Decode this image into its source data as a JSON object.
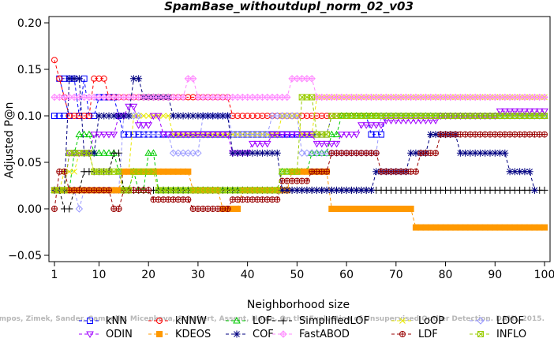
{
  "chart_data": {
    "type": "line",
    "title": "SpamBase_withoutdupl_norm_02_v03",
    "xlabel": "Neighborhood size",
    "ylabel": "Adjusted P@n",
    "xlim": [
      1,
      100
    ],
    "ylim": [
      -0.05,
      0.2
    ],
    "xticks": [
      "1",
      "10",
      "20",
      "30",
      "40",
      "50",
      "60",
      "70",
      "80",
      "90",
      "100"
    ],
    "yticks": [
      "−0.05",
      "0.00",
      "0.05",
      "0.10",
      "0.15",
      "0.20"
    ],
    "grid": false,
    "legend_position": "bottom",
    "credit": "Campos, Zimek, Sander, Campello, Micenkova, Schubert, Assent, Houle. On the Evaluation of Unsupervised Outlier Detection. DAMI, 2015.",
    "series": [
      {
        "name": "kNN",
        "color": "#0000ff",
        "marker": "square",
        "segments": [
          [
            1,
            4,
            0.1
          ],
          [
            2,
            5,
            0.14
          ],
          [
            6,
            6,
            0.1
          ],
          [
            7,
            7,
            0.14
          ],
          [
            8,
            9,
            0.1
          ],
          [
            10,
            13,
            0.12
          ],
          [
            14,
            14,
            0.1
          ],
          [
            15,
            36,
            0.08
          ],
          [
            37,
            56,
            0.08
          ],
          [
            57,
            64,
            0.1
          ],
          [
            65,
            67,
            0.08
          ],
          [
            68,
            100,
            0.1
          ]
        ]
      },
      {
        "name": "kNNW",
        "color": "#ff0000",
        "marker": "circle",
        "segments": [
          [
            1,
            1,
            0.16
          ],
          [
            2,
            2,
            0.14
          ],
          [
            3,
            3,
            0.12
          ],
          [
            4,
            8,
            0.1
          ],
          [
            9,
            11,
            0.14
          ],
          [
            12,
            36,
            0.12
          ],
          [
            37,
            100,
            0.1
          ]
        ]
      },
      {
        "name": "LOF",
        "color": "#00cc00",
        "marker": "triangle-up",
        "segments": [
          [
            1,
            4,
            0.02
          ],
          [
            5,
            5,
            0.06
          ],
          [
            6,
            8,
            0.08
          ],
          [
            9,
            13,
            0.06
          ],
          [
            14,
            14,
            0.04
          ],
          [
            15,
            16,
            0.02
          ],
          [
            17,
            17,
            0.04
          ],
          [
            18,
            19,
            0.02
          ],
          [
            20,
            21,
            0.06
          ],
          [
            22,
            46,
            0.02
          ],
          [
            47,
            52,
            0.04
          ],
          [
            53,
            56,
            0.06
          ],
          [
            57,
            58,
            0.08
          ],
          [
            59,
            100,
            0.1
          ]
        ]
      },
      {
        "name": "SimplifiedLOF",
        "color": "#000000",
        "marker": "plus",
        "segments": [
          [
            1,
            2,
            0.02
          ],
          [
            3,
            4,
            0.0
          ],
          [
            5,
            6,
            0.02
          ],
          [
            7,
            12,
            0.04
          ],
          [
            13,
            14,
            0.06
          ],
          [
            15,
            18,
            0.02
          ],
          [
            19,
            46,
            0.02
          ],
          [
            47,
            100,
            0.02
          ]
        ]
      },
      {
        "name": "LoOP",
        "color": "#e8e800",
        "marker": "x",
        "segments": [
          [
            1,
            2,
            0.02
          ],
          [
            3,
            5,
            0.04
          ],
          [
            6,
            8,
            0.06
          ],
          [
            9,
            16,
            0.04
          ],
          [
            17,
            24,
            0.1
          ],
          [
            25,
            46,
            0.08
          ],
          [
            47,
            50,
            0.1
          ],
          [
            51,
            53,
            0.08
          ],
          [
            54,
            100,
            0.12
          ]
        ]
      },
      {
        "name": "LDOF",
        "color": "#9999ff",
        "marker": "diamond",
        "segments": [
          [
            1,
            5,
            0.02
          ],
          [
            6,
            6,
            0.0
          ],
          [
            7,
            14,
            0.02
          ],
          [
            15,
            18,
            0.1
          ],
          [
            19,
            24,
            0.08
          ],
          [
            25,
            30,
            0.06
          ],
          [
            31,
            36,
            0.1
          ],
          [
            37,
            44,
            0.08
          ],
          [
            45,
            50,
            0.1
          ],
          [
            51,
            54,
            0.06
          ],
          [
            55,
            66,
            0.06
          ],
          [
            67,
            100,
            0.1
          ]
        ]
      },
      {
        "name": "ODIN",
        "color": "#a000ff",
        "marker": "triangle-down",
        "segments": [
          [
            1,
            3,
            0.02
          ],
          [
            4,
            8,
            0.06
          ],
          [
            9,
            13,
            0.08
          ],
          [
            14,
            15,
            0.1
          ],
          [
            16,
            17,
            0.11
          ],
          [
            18,
            20,
            0.09
          ],
          [
            21,
            22,
            0.1
          ],
          [
            23,
            36,
            0.08
          ],
          [
            37,
            40,
            0.06
          ],
          [
            41,
            44,
            0.07
          ],
          [
            45,
            48,
            0.08
          ],
          [
            49,
            53,
            0.08
          ],
          [
            54,
            58,
            0.07
          ],
          [
            59,
            62,
            0.08
          ],
          [
            63,
            67,
            0.09
          ],
          [
            68,
            78,
            0.095
          ],
          [
            79,
            90,
            0.1
          ],
          [
            91,
            100,
            0.105
          ]
        ]
      },
      {
        "name": "KDEOS",
        "color": "#ff9900",
        "marker": "square-filled",
        "segments": [
          [
            1,
            2,
            0.02
          ],
          [
            3,
            14,
            0.02
          ],
          [
            15,
            24,
            0.04
          ],
          [
            25,
            28,
            0.04
          ],
          [
            29,
            34,
            0.02
          ],
          [
            35,
            38,
            0.0
          ],
          [
            39,
            48,
            0.02
          ],
          [
            49,
            56,
            0.04
          ],
          [
            57,
            73,
            0.0
          ],
          [
            74,
            100,
            -0.02
          ]
        ]
      },
      {
        "name": "COF",
        "color": "#000080",
        "marker": "star",
        "segments": [
          [
            1,
            3,
            0.02
          ],
          [
            4,
            6,
            0.14
          ],
          [
            7,
            9,
            0.06
          ],
          [
            10,
            13,
            0.1
          ],
          [
            14,
            16,
            0.1
          ],
          [
            17,
            18,
            0.14
          ],
          [
            19,
            24,
            0.12
          ],
          [
            25,
            36,
            0.1
          ],
          [
            37,
            42,
            0.06
          ],
          [
            43,
            46,
            0.06
          ],
          [
            47,
            53,
            0.02
          ],
          [
            54,
            65,
            0.02
          ],
          [
            66,
            66,
            0.04
          ],
          [
            67,
            72,
            0.04
          ],
          [
            73,
            76,
            0.06
          ],
          [
            77,
            82,
            0.08
          ],
          [
            83,
            92,
            0.06
          ],
          [
            93,
            97,
            0.04
          ],
          [
            98,
            98,
            0.02
          ]
        ]
      },
      {
        "name": "FastABOD",
        "color": "#ff88ff",
        "marker": "diamond-plus",
        "segments": [
          [
            1,
            3,
            0.12
          ],
          [
            4,
            8,
            0.12
          ],
          [
            9,
            14,
            0.12
          ],
          [
            15,
            27,
            0.12
          ],
          [
            28,
            29,
            0.14
          ],
          [
            30,
            48,
            0.12
          ],
          [
            49,
            53,
            0.14
          ],
          [
            54,
            100,
            0.12
          ]
        ]
      },
      {
        "name": "LDF",
        "color": "#990000",
        "marker": "circle-plus",
        "segments": [
          [
            1,
            1,
            0.0
          ],
          [
            2,
            3,
            0.04
          ],
          [
            4,
            6,
            0.02
          ],
          [
            7,
            12,
            0.02
          ],
          [
            13,
            14,
            0.0
          ],
          [
            15,
            20,
            0.02
          ],
          [
            21,
            28,
            0.01
          ],
          [
            29,
            36,
            0.0
          ],
          [
            37,
            46,
            0.01
          ],
          [
            47,
            52,
            0.03
          ],
          [
            53,
            56,
            0.04
          ],
          [
            57,
            62,
            0.06
          ],
          [
            63,
            66,
            0.06
          ],
          [
            67,
            74,
            0.04
          ],
          [
            75,
            78,
            0.06
          ],
          [
            79,
            100,
            0.08
          ]
        ]
      },
      {
        "name": "INFLO",
        "color": "#99cc00",
        "marker": "square-x",
        "segments": [
          [
            1,
            3,
            0.02
          ],
          [
            4,
            8,
            0.06
          ],
          [
            9,
            14,
            0.04
          ],
          [
            15,
            16,
            0.02
          ],
          [
            17,
            21,
            0.04
          ],
          [
            22,
            36,
            0.02
          ],
          [
            37,
            46,
            0.02
          ],
          [
            47,
            50,
            0.04
          ],
          [
            51,
            53,
            0.12
          ],
          [
            54,
            56,
            0.08
          ],
          [
            57,
            60,
            0.1
          ],
          [
            61,
            100,
            0.1
          ]
        ]
      }
    ]
  }
}
